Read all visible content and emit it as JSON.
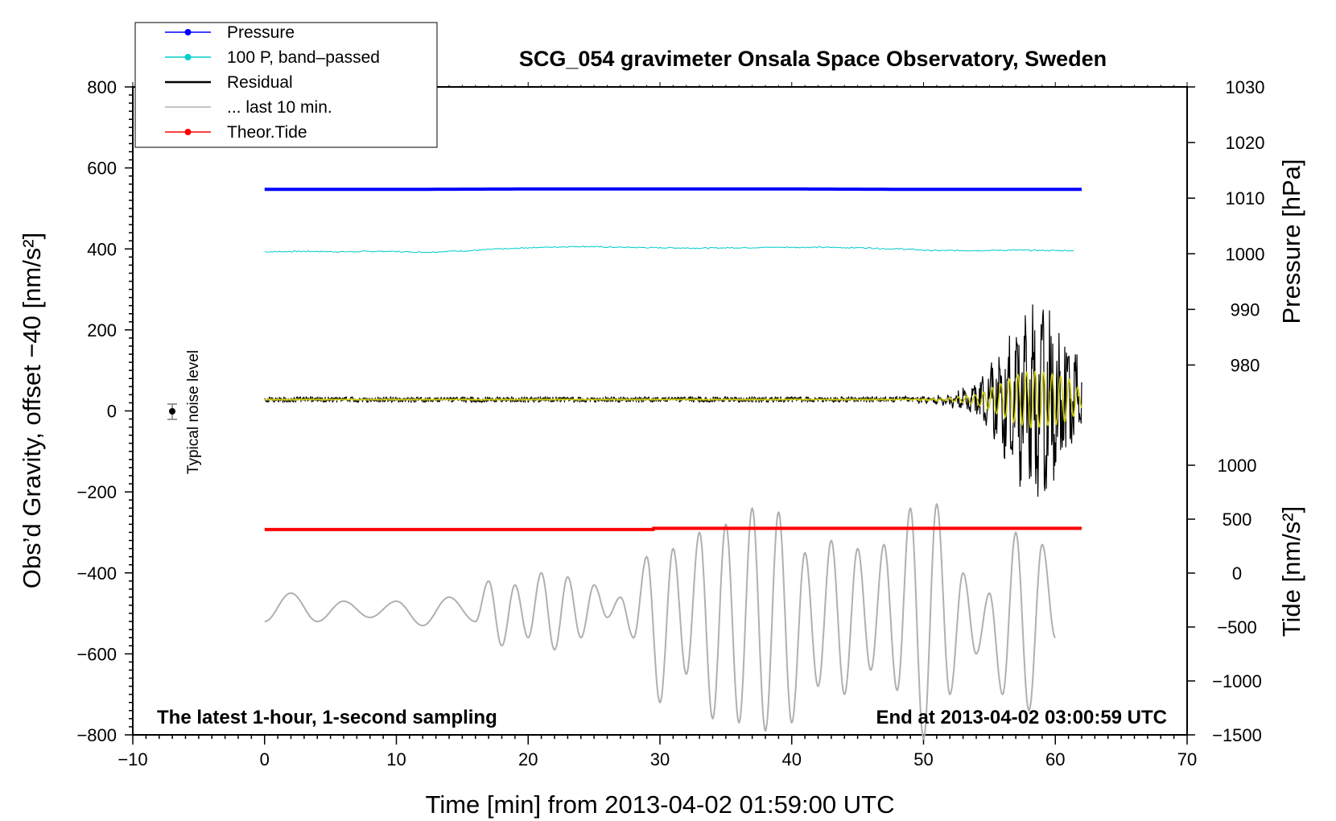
{
  "chart_data": {
    "type": "line",
    "title": "SCG_054 gravimeter Onsala Space Observatory, Sweden",
    "xlabel": "Time [min] from 2013-04-02 01:59:00 UTC",
    "ylabel_left": "Obs’d Gravity, offset −40 [nm/s²]",
    "ylabel_right_top": "Pressure [hPa]",
    "ylabel_right_bottom": "Tide [nm/s²]",
    "xlim": [
      -10,
      70
    ],
    "ylim": [
      -800,
      800
    ],
    "pressure_axis_range_hPa": [
      975,
      1030
    ],
    "tide_axis_range_nm_s2": [
      -1500,
      1000
    ],
    "x_ticks": [
      "−10",
      "0",
      "10",
      "20",
      "30",
      "40",
      "50",
      "60",
      "70"
    ],
    "y_ticks_left": [
      "−800",
      "−600",
      "−400",
      "−200",
      "0",
      "200",
      "400",
      "600",
      "800"
    ],
    "y_ticks_pressure": [
      "980",
      "990",
      "1000",
      "1010",
      "1020",
      "1030"
    ],
    "y_ticks_tide": [
      "−1500",
      "−1000",
      "−500",
      "0",
      "500",
      "1000"
    ],
    "bottom_left_note": "The latest 1-hour, 1-second sampling",
    "bottom_right_note": "End at 2013-04-02 03:00:59 UTC",
    "noise_label": "Typical noise level",
    "noise_marker": {
      "x": -7,
      "y": 0,
      "err": 20
    },
    "legend": {
      "position": "top-left",
      "items": [
        {
          "label": "Pressure",
          "color": "#0000ff",
          "marker": true
        },
        {
          "label": "100 P, band–passed",
          "color": "#00cccc",
          "marker": true
        },
        {
          "label": "Residual",
          "color": "#000000",
          "marker": false
        },
        {
          "label": "... last 10 min.",
          "color": "#b0b0b0",
          "marker": false
        },
        {
          "label": "Theor.Tide",
          "color": "#ff0000",
          "marker": true
        }
      ]
    },
    "colors": {
      "pressure": "#0000ff",
      "bandpassed": "#00cccc",
      "residual": "#000000",
      "residual_filtered": "#cccc00",
      "last10": "#b0b0b0",
      "tide": "#ff0000"
    },
    "series": [
      {
        "key": "pressure",
        "x": [
          0,
          10,
          20,
          30,
          40,
          50,
          62
        ],
        "y": [
          547,
          547,
          548,
          548,
          548,
          547,
          547
        ]
      },
      {
        "key": "tide",
        "x": [
          0,
          29.5,
          29.5,
          62
        ],
        "y": [
          -293,
          -293,
          -290,
          -290
        ]
      },
      {
        "key": "bandpassed",
        "x": [
          0,
          3,
          6,
          9,
          12,
          15,
          18,
          21,
          24,
          27,
          30,
          33,
          36,
          39,
          42,
          45,
          48,
          51,
          54,
          57,
          60,
          61.5
        ],
        "y": [
          393,
          394,
          393,
          394,
          392,
          395,
          400,
          404,
          406,
          404,
          403,
          402,
          403,
          404,
          404,
          403,
          400,
          396,
          396,
          397,
          396,
          396
        ]
      },
      {
        "key": "residual",
        "x": [
          0,
          10,
          20,
          30,
          40,
          45,
          50,
          52,
          54,
          55,
          56,
          57,
          58,
          59,
          60,
          61,
          62
        ],
        "y": [
          28,
          28,
          28,
          28,
          28,
          28,
          32,
          40,
          70,
          120,
          180,
          240,
          280,
          270,
          250,
          220,
          100
        ]
      },
      {
        "key": "last10",
        "x": [
          0,
          2,
          4,
          6,
          8,
          10,
          12,
          14,
          16,
          17,
          18,
          19,
          20,
          21,
          22,
          23,
          24,
          25,
          26,
          27,
          28,
          29,
          30,
          31,
          32,
          33,
          34,
          35,
          36,
          37,
          38,
          39,
          40,
          41,
          42,
          43,
          44,
          45,
          46,
          47,
          48,
          49,
          50,
          51,
          52,
          53,
          54,
          55,
          56,
          57,
          58,
          59,
          60
        ],
        "y": [
          -520,
          -450,
          -520,
          -470,
          -510,
          -470,
          -530,
          -460,
          -520,
          -420,
          -580,
          -430,
          -560,
          -400,
          -590,
          -410,
          -560,
          -430,
          -510,
          -460,
          -560,
          -360,
          -720,
          -340,
          -650,
          -300,
          -760,
          -280,
          -770,
          -240,
          -790,
          -250,
          -770,
          -350,
          -680,
          -320,
          -700,
          -340,
          -640,
          -330,
          -690,
          -240,
          -810,
          -230,
          -700,
          -400,
          -600,
          -450,
          -700,
          -300,
          -740,
          -330,
          -560
        ]
      }
    ]
  }
}
